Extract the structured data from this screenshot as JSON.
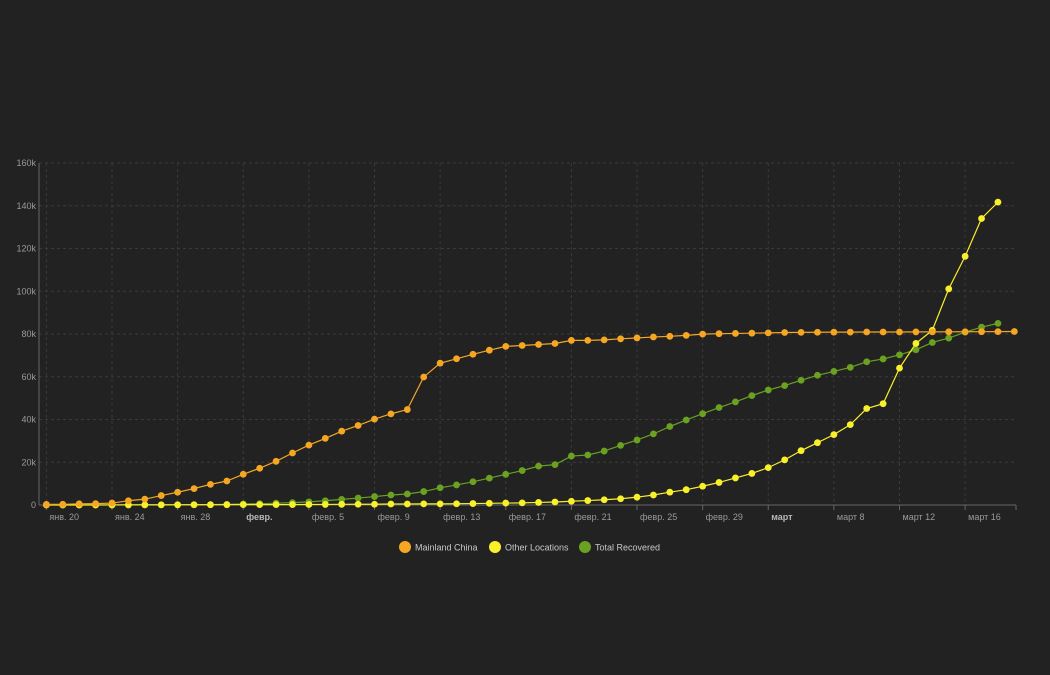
{
  "chart_data": {
    "type": "line",
    "title": "",
    "xlabel": "",
    "ylabel": "",
    "x_start": "2020-01-20",
    "x_end": "2020-03-19",
    "ylim": [
      0,
      160000
    ],
    "grid": true,
    "legend_position": "bottom-center",
    "y_ticks": [
      {
        "value": 0,
        "label": "0"
      },
      {
        "value": 20000,
        "label": "20k"
      },
      {
        "value": 40000,
        "label": "40k"
      },
      {
        "value": 60000,
        "label": "60k"
      },
      {
        "value": 80000,
        "label": "80k"
      },
      {
        "value": 100000,
        "label": "100k"
      },
      {
        "value": 120000,
        "label": "120k"
      },
      {
        "value": 140000,
        "label": "140k"
      },
      {
        "value": 160000,
        "label": "160k"
      }
    ],
    "x_ticks": [
      {
        "date": "2020-01-20",
        "label": "янв. 20",
        "bold": false
      },
      {
        "date": "2020-01-24",
        "label": "янв. 24",
        "bold": false
      },
      {
        "date": "2020-01-28",
        "label": "янв. 28",
        "bold": false
      },
      {
        "date": "2020-02-01",
        "label": "февр.",
        "bold": true
      },
      {
        "date": "2020-02-05",
        "label": "февр. 5",
        "bold": false
      },
      {
        "date": "2020-02-09",
        "label": "февр. 9",
        "bold": false
      },
      {
        "date": "2020-02-13",
        "label": "февр. 13",
        "bold": false
      },
      {
        "date": "2020-02-17",
        "label": "февр. 17",
        "bold": false
      },
      {
        "date": "2020-02-21",
        "label": "февр. 21",
        "bold": false
      },
      {
        "date": "2020-02-25",
        "label": "февр. 25",
        "bold": false
      },
      {
        "date": "2020-02-29",
        "label": "февр. 29",
        "bold": false
      },
      {
        "date": "2020-03-04",
        "label": "март",
        "bold": true
      },
      {
        "date": "2020-03-08",
        "label": "март 8",
        "bold": false
      },
      {
        "date": "2020-03-12",
        "label": "март 12",
        "bold": false
      },
      {
        "date": "2020-03-16",
        "label": "март 16",
        "bold": false
      }
    ],
    "series": [
      {
        "name": "Mainland China",
        "color": "#f5a623",
        "start_date": "2020-01-20",
        "values": [
          278,
          326,
          547,
          639,
          916,
          1979,
          2737,
          4409,
          5970,
          7678,
          9658,
          11221,
          14375,
          17205,
          20440,
          24324,
          28018,
          31161,
          34546,
          37198,
          40171,
          42638,
          44653,
          59895,
          66358,
          68413,
          70513,
          72434,
          74211,
          74619,
          75077,
          75550,
          77001,
          77022,
          77241,
          77754,
          78166,
          78600,
          78928,
          79356,
          79932,
          80136,
          80261,
          80386,
          80537,
          80690,
          80770,
          80823,
          80860,
          80887,
          80921,
          80932,
          80945,
          80977,
          81003,
          81021,
          81048,
          81077,
          81116,
          81155
        ]
      },
      {
        "name": "Other Locations",
        "color": "#f8f02a",
        "start_date": "2020-01-20",
        "values": [
          4,
          6,
          8,
          14,
          25,
          40,
          57,
          64,
          87,
          105,
          118,
          153,
          173,
          183,
          188,
          212,
          227,
          265,
          317,
          343,
          361,
          457,
          476,
          523,
          538,
          595,
          685,
          780,
          896,
          999,
          1200,
          1402,
          1769,
          2069,
          2459,
          2918,
          3664,
          4691,
          6009,
          7169,
          8774,
          10566,
          12668,
          14760,
          17481,
          21110,
          25422,
          29154,
          32922,
          37592,
          45141,
          47397,
          64050,
          75582,
          81756,
          101099,
          116357,
          134037,
          141700
        ]
      },
      {
        "name": "Total Recovered",
        "color": "#6aa121",
        "start_date": "2020-01-21",
        "values": [
          28,
          30,
          36,
          39,
          49,
          58,
          101,
          120,
          135,
          214,
          275,
          463,
          614,
          843,
          1115,
          1477,
          1999,
          2616,
          3244,
          3946,
          4683,
          5150,
          6295,
          8058,
          9395,
          10865,
          12583,
          14352,
          16121,
          18177,
          18890,
          22886,
          23394,
          25227,
          27905,
          30384,
          33277,
          36711,
          39782,
          42716,
          45602,
          48228,
          51170,
          53796,
          55865,
          58359,
          60694,
          62494,
          64404,
          67003,
          68324,
          70251,
          72624,
          76034,
          78088,
          80840,
          83207,
          84975
        ]
      }
    ]
  }
}
